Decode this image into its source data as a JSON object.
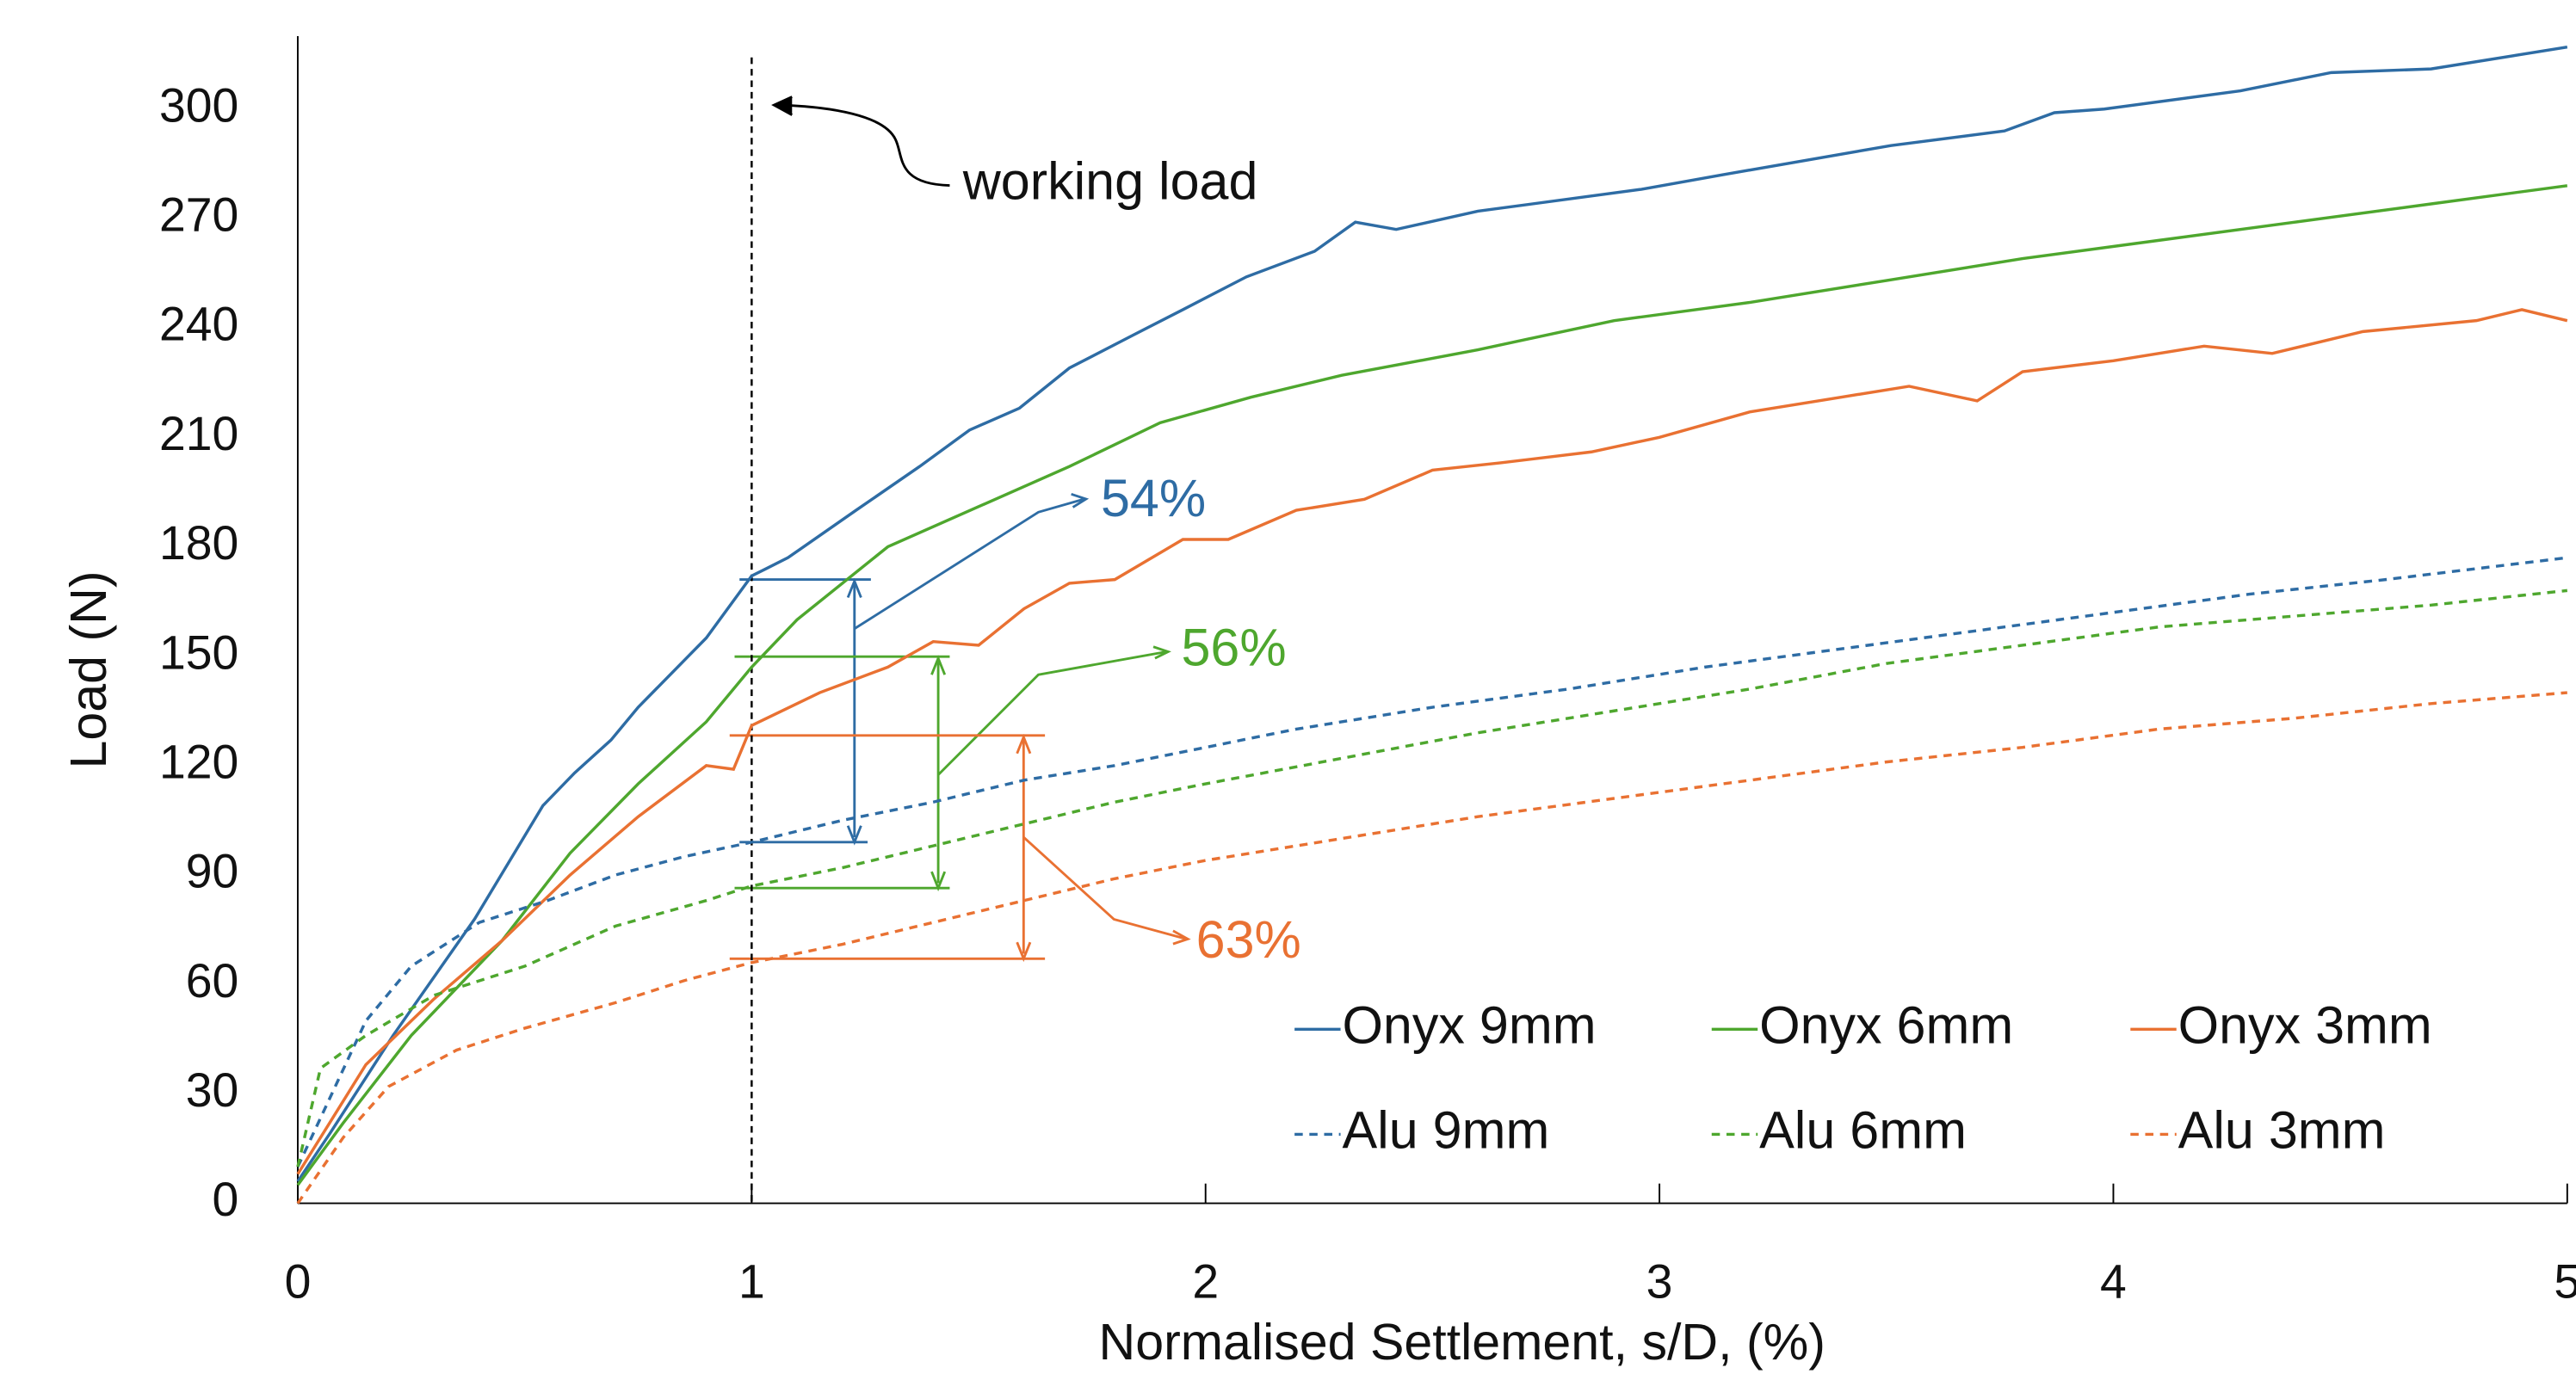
{
  "chart_data": {
    "type": "line",
    "xlabel": "Normalised Settlement, s/D, (%)",
    "ylabel": "Load (N)",
    "xlim": [
      0,
      5
    ],
    "ylim": [
      0,
      320
    ],
    "xticks": [
      0,
      1,
      2,
      3,
      4,
      5
    ],
    "yticks": [
      0,
      30,
      60,
      90,
      120,
      150,
      180,
      210,
      240,
      270,
      300
    ],
    "grid": false,
    "legend": "bottom-right",
    "series": [
      {
        "name": "Onyx 9mm",
        "color": "#2e6ca4",
        "dashed": false,
        "x": [
          0,
          0.07,
          0.21,
          0.39,
          0.54,
          0.61,
          0.69,
          0.75,
          0.9,
          1.0,
          1.08,
          1.23,
          1.37,
          1.48,
          1.59,
          1.7,
          1.84,
          1.95,
          2.09,
          2.24,
          2.33,
          2.42,
          2.6,
          2.96,
          3.14,
          3.51,
          3.76,
          3.87,
          3.98,
          4.28,
          4.48,
          4.7,
          5.0
        ],
        "values": [
          6,
          19,
          46,
          78,
          109,
          118,
          127,
          136,
          155,
          172,
          177,
          190,
          202,
          212,
          218,
          229,
          238,
          245,
          254,
          261,
          269,
          267,
          272,
          278,
          282,
          290,
          294,
          299,
          300,
          305,
          310,
          311,
          317
        ]
      },
      {
        "name": "Onyx 6mm",
        "color": "#4ea72e",
        "dashed": false,
        "x": [
          0,
          0.1,
          0.25,
          0.45,
          0.6,
          0.75,
          0.9,
          1.0,
          1.1,
          1.3,
          1.5,
          1.7,
          1.9,
          2.1,
          2.3,
          2.6,
          2.9,
          3.2,
          3.5,
          3.8,
          4.1,
          4.4,
          4.7,
          5.0
        ],
        "values": [
          5,
          22,
          46,
          72,
          96,
          115,
          132,
          147,
          160,
          180,
          191,
          202,
          214,
          221,
          227,
          234,
          242,
          247,
          253,
          259,
          264,
          269,
          274,
          279
        ]
      },
      {
        "name": "Onyx 3mm",
        "color": "#e97132",
        "dashed": false,
        "x": [
          0,
          0.15,
          0.3,
          0.45,
          0.6,
          0.75,
          0.9,
          0.96,
          1.0,
          1.15,
          1.3,
          1.4,
          1.5,
          1.6,
          1.7,
          1.8,
          1.95,
          2.05,
          2.2,
          2.35,
          2.5,
          2.65,
          2.85,
          3.0,
          3.2,
          3.4,
          3.55,
          3.7,
          3.8,
          4.0,
          4.2,
          4.35,
          4.55,
          4.8,
          4.9,
          5.0
        ],
        "values": [
          8,
          38,
          56,
          72,
          90,
          106,
          120,
          119,
          131,
          140,
          147,
          154,
          153,
          163,
          170,
          171,
          182,
          182,
          190,
          193,
          201,
          203,
          206,
          210,
          217,
          221,
          224,
          220,
          228,
          231,
          235,
          233,
          239,
          242,
          245,
          242
        ]
      },
      {
        "name": "Alu 9mm",
        "color": "#2e6ca4",
        "dashed": true,
        "x": [
          0,
          0.15,
          0.25,
          0.4,
          0.55,
          0.7,
          0.85,
          1.0,
          1.2,
          1.4,
          1.6,
          1.8,
          2.0,
          2.2,
          2.5,
          2.8,
          3.1,
          3.4,
          3.7,
          4.0,
          4.3,
          4.6,
          5.0
        ],
        "values": [
          10,
          50,
          65,
          77,
          83,
          90,
          95,
          99,
          105,
          110,
          116,
          120,
          125,
          130,
          136,
          141,
          147,
          152,
          157,
          162,
          167,
          171,
          177
        ]
      },
      {
        "name": "Alu 6mm",
        "color": "#4ea72e",
        "dashed": true,
        "x": [
          0,
          0.05,
          0.15,
          0.3,
          0.5,
          0.7,
          0.9,
          1.0,
          1.2,
          1.4,
          1.6,
          1.8,
          2.0,
          2.3,
          2.6,
          2.9,
          3.2,
          3.5,
          3.8,
          4.1,
          4.4,
          4.7,
          5.0
        ],
        "values": [
          10,
          37,
          46,
          57,
          65,
          76,
          83,
          87,
          92,
          98,
          104,
          110,
          115,
          122,
          129,
          135,
          141,
          148,
          153,
          158,
          161,
          164,
          168
        ]
      },
      {
        "name": "Alu 3mm",
        "color": "#e97132",
        "dashed": true,
        "x": [
          0,
          0.1,
          0.2,
          0.35,
          0.5,
          0.7,
          0.85,
          1.0,
          1.2,
          1.4,
          1.6,
          1.8,
          2.0,
          2.3,
          2.6,
          2.9,
          3.2,
          3.5,
          3.8,
          4.1,
          4.4,
          4.7,
          5.0
        ],
        "values": [
          0,
          18,
          32,
          42,
          48,
          55,
          61,
          66,
          71,
          77,
          83,
          89,
          94,
          100,
          106,
          111,
          116,
          121,
          125,
          130,
          133,
          137,
          140
        ]
      }
    ],
    "annotations": [
      {
        "text": "working load",
        "x": 1
      },
      {
        "text": "54%",
        "color": "#2e6ca4"
      },
      {
        "text": "56%",
        "color": "#4ea72e"
      },
      {
        "text": "63%",
        "color": "#e97132"
      }
    ]
  }
}
